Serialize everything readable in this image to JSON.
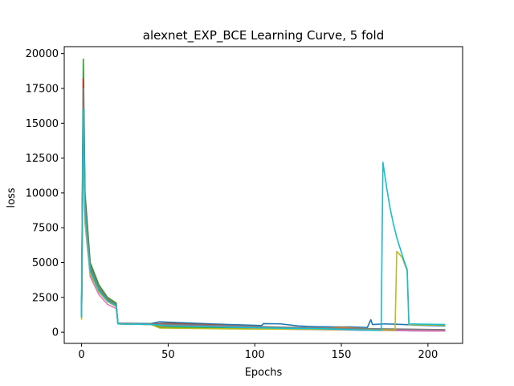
{
  "chart_data": {
    "type": "line",
    "title": "alexnet_EXP_BCE Learning Curve, 5 fold",
    "xlabel": "Epochs",
    "ylabel": "loss",
    "xlim": [
      -10,
      220
    ],
    "ylim": [
      -800,
      20500
    ],
    "xticks": [
      0,
      50,
      100,
      150,
      200
    ],
    "yticks": [
      0,
      2500,
      5000,
      7500,
      10000,
      12500,
      15000,
      17500,
      20000
    ],
    "grid": false,
    "legend": "none",
    "series": [
      {
        "color": "#1f77b4",
        "points": [
          [
            0,
            1000
          ],
          [
            1,
            17000
          ],
          [
            2,
            9000
          ],
          [
            5,
            4800
          ],
          [
            10,
            3200
          ],
          [
            15,
            2400
          ],
          [
            20,
            2000
          ],
          [
            21,
            650
          ],
          [
            40,
            620
          ],
          [
            45,
            750
          ],
          [
            55,
            700
          ],
          [
            65,
            650
          ],
          [
            75,
            600
          ],
          [
            85,
            550
          ],
          [
            95,
            520
          ],
          [
            104,
            480
          ],
          [
            105,
            620
          ],
          [
            115,
            600
          ],
          [
            125,
            450
          ],
          [
            135,
            400
          ],
          [
            145,
            380
          ],
          [
            155,
            380
          ],
          [
            165,
            340
          ],
          [
            167,
            900
          ],
          [
            168,
            550
          ],
          [
            175,
            600
          ],
          [
            185,
            560
          ],
          [
            195,
            500
          ],
          [
            210,
            450
          ]
        ]
      },
      {
        "color": "#ff7f0e",
        "points": [
          [
            0,
            1200
          ],
          [
            1,
            16000
          ],
          [
            2,
            8500
          ],
          [
            5,
            4500
          ],
          [
            10,
            3000
          ],
          [
            15,
            2300
          ],
          [
            20,
            1900
          ],
          [
            21,
            620
          ],
          [
            40,
            580
          ],
          [
            45,
            400
          ],
          [
            60,
            380
          ],
          [
            80,
            350
          ],
          [
            95,
            320
          ],
          [
            110,
            300
          ],
          [
            140,
            280
          ],
          [
            150,
            350
          ],
          [
            165,
            250
          ],
          [
            180,
            200
          ],
          [
            200,
            150
          ],
          [
            210,
            120
          ]
        ]
      },
      {
        "color": "#2ca02c",
        "points": [
          [
            0,
            2000
          ],
          [
            1,
            19600
          ],
          [
            2,
            10000
          ],
          [
            5,
            5000
          ],
          [
            10,
            3400
          ],
          [
            15,
            2500
          ],
          [
            20,
            2100
          ],
          [
            21,
            600
          ],
          [
            40,
            560
          ],
          [
            45,
            350
          ],
          [
            60,
            330
          ],
          [
            80,
            300
          ],
          [
            100,
            280
          ],
          [
            130,
            250
          ],
          [
            160,
            200
          ],
          [
            185,
            150
          ],
          [
            210,
            100
          ]
        ]
      },
      {
        "color": "#d62728",
        "points": [
          [
            0,
            1500
          ],
          [
            1,
            18200
          ],
          [
            2,
            9500
          ],
          [
            5,
            4700
          ],
          [
            10,
            3200
          ],
          [
            15,
            2400
          ],
          [
            20,
            2000
          ],
          [
            21,
            600
          ],
          [
            40,
            570
          ],
          [
            50,
            550
          ],
          [
            70,
            500
          ],
          [
            90,
            450
          ],
          [
            100,
            420
          ],
          [
            110,
            300
          ],
          [
            130,
            250
          ],
          [
            160,
            200
          ],
          [
            185,
            120
          ],
          [
            210,
            100
          ]
        ]
      },
      {
        "color": "#9467bd",
        "points": [
          [
            0,
            1100
          ],
          [
            1,
            15500
          ],
          [
            2,
            8200
          ],
          [
            5,
            4300
          ],
          [
            10,
            2900
          ],
          [
            15,
            2200
          ],
          [
            20,
            1850
          ],
          [
            21,
            600
          ],
          [
            40,
            560
          ],
          [
            50,
            500
          ],
          [
            70,
            450
          ],
          [
            85,
            480
          ],
          [
            95,
            430
          ],
          [
            105,
            250
          ],
          [
            130,
            200
          ],
          [
            160,
            150
          ],
          [
            190,
            100
          ],
          [
            210,
            80
          ]
        ]
      },
      {
        "color": "#8c564b",
        "points": [
          [
            0,
            1300
          ],
          [
            1,
            16500
          ],
          [
            2,
            8800
          ],
          [
            5,
            4600
          ],
          [
            10,
            3100
          ],
          [
            15,
            2300
          ],
          [
            20,
            1950
          ],
          [
            21,
            620
          ],
          [
            40,
            600
          ],
          [
            50,
            650
          ],
          [
            60,
            600
          ],
          [
            80,
            520
          ],
          [
            95,
            400
          ],
          [
            110,
            300
          ],
          [
            130,
            250
          ],
          [
            150,
            220
          ],
          [
            170,
            200
          ],
          [
            190,
            200
          ],
          [
            210,
            180
          ]
        ]
      },
      {
        "color": "#e377c2",
        "points": [
          [
            0,
            1200
          ],
          [
            1,
            15000
          ],
          [
            2,
            7800
          ],
          [
            5,
            4000
          ],
          [
            10,
            2700
          ],
          [
            15,
            2000
          ],
          [
            20,
            1700
          ],
          [
            21,
            600
          ],
          [
            40,
            560
          ],
          [
            50,
            500
          ],
          [
            70,
            420
          ],
          [
            90,
            380
          ],
          [
            110,
            250
          ],
          [
            140,
            200
          ],
          [
            170,
            150
          ],
          [
            200,
            100
          ],
          [
            210,
            80
          ]
        ]
      },
      {
        "color": "#7f7f7f",
        "points": [
          [
            0,
            1400
          ],
          [
            1,
            17500
          ],
          [
            2,
            9200
          ],
          [
            5,
            4700
          ],
          [
            10,
            3200
          ],
          [
            15,
            2400
          ],
          [
            20,
            2000
          ],
          [
            21,
            600
          ],
          [
            40,
            580
          ],
          [
            50,
            550
          ],
          [
            70,
            500
          ],
          [
            90,
            460
          ],
          [
            110,
            380
          ],
          [
            140,
            300
          ],
          [
            170,
            250
          ],
          [
            200,
            200
          ],
          [
            210,
            180
          ]
        ]
      },
      {
        "color": "#bcbd22",
        "points": [
          [
            0,
            900
          ],
          [
            1,
            14700
          ],
          [
            2,
            8000
          ],
          [
            5,
            4200
          ],
          [
            10,
            2900
          ],
          [
            15,
            2200
          ],
          [
            20,
            1850
          ],
          [
            21,
            600
          ],
          [
            40,
            560
          ],
          [
            45,
            300
          ],
          [
            60,
            280
          ],
          [
            80,
            250
          ],
          [
            100,
            230
          ],
          [
            120,
            220
          ],
          [
            140,
            200
          ],
          [
            160,
            180
          ],
          [
            181,
            150
          ],
          [
            182,
            5800
          ],
          [
            185,
            5400
          ],
          [
            188,
            4400
          ],
          [
            189,
            550
          ],
          [
            210,
            500
          ]
        ]
      },
      {
        "color": "#17becf",
        "points": [
          [
            0,
            1100
          ],
          [
            1,
            16000
          ],
          [
            2,
            8500
          ],
          [
            5,
            4400
          ],
          [
            10,
            3000
          ],
          [
            15,
            2250
          ],
          [
            20,
            1900
          ],
          [
            21,
            600
          ],
          [
            40,
            560
          ],
          [
            50,
            450
          ],
          [
            70,
            400
          ],
          [
            90,
            350
          ],
          [
            110,
            300
          ],
          [
            140,
            250
          ],
          [
            165,
            150
          ],
          [
            173,
            150
          ],
          [
            174,
            12200
          ],
          [
            176,
            10500
          ],
          [
            178,
            9000
          ],
          [
            180,
            7800
          ],
          [
            182,
            6800
          ],
          [
            184,
            6000
          ],
          [
            186,
            5200
          ],
          [
            188,
            4500
          ],
          [
            189,
            600
          ],
          [
            210,
            550
          ]
        ]
      }
    ]
  }
}
